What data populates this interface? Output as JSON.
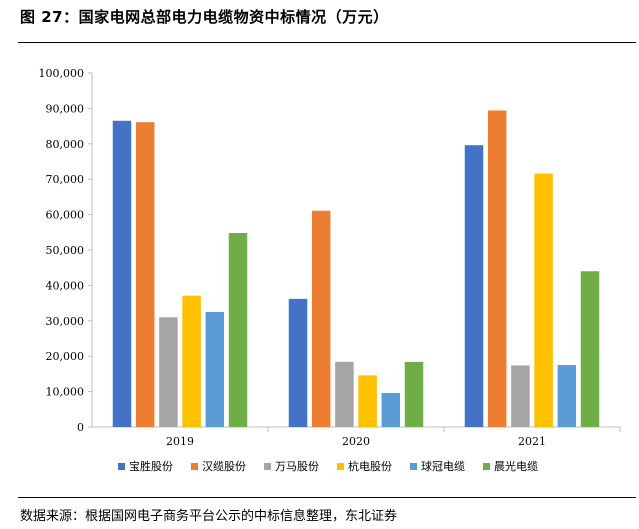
{
  "figure": {
    "title": "图 27：国家电网总部电力电缆物资中标情况（万元）",
    "source": "数据来源：根据国网电子商务平台公示的中标信息整理，东北证券"
  },
  "chart_data": {
    "type": "bar",
    "categories": [
      "2019",
      "2020",
      "2021"
    ],
    "series": [
      {
        "name": "宝胜股份",
        "color": "#4472C4",
        "values": [
          86500,
          36200,
          79600
        ]
      },
      {
        "name": "汉缆股份",
        "color": "#ED7D31",
        "values": [
          86100,
          61100,
          89400
        ]
      },
      {
        "name": "万马股份",
        "color": "#A5A5A5",
        "values": [
          31000,
          18400,
          17400
        ]
      },
      {
        "name": "杭电股份",
        "color": "#FFC000",
        "values": [
          37100,
          14600,
          71600
        ]
      },
      {
        "name": "球冠电缆",
        "color": "#5B9BD5",
        "values": [
          32500,
          9600,
          17500
        ]
      },
      {
        "name": "晨光电缆",
        "color": "#70AD47",
        "values": [
          54800,
          18400,
          44000
        ]
      }
    ],
    "ylim": [
      0,
      100000
    ],
    "yticks": [
      "0",
      "10,000",
      "20,000",
      "30,000",
      "40,000",
      "50,000",
      "60,000",
      "70,000",
      "80,000",
      "90,000",
      "100,000"
    ],
    "xlabel": "",
    "ylabel": "",
    "grid": false,
    "legend_position": "bottom"
  }
}
